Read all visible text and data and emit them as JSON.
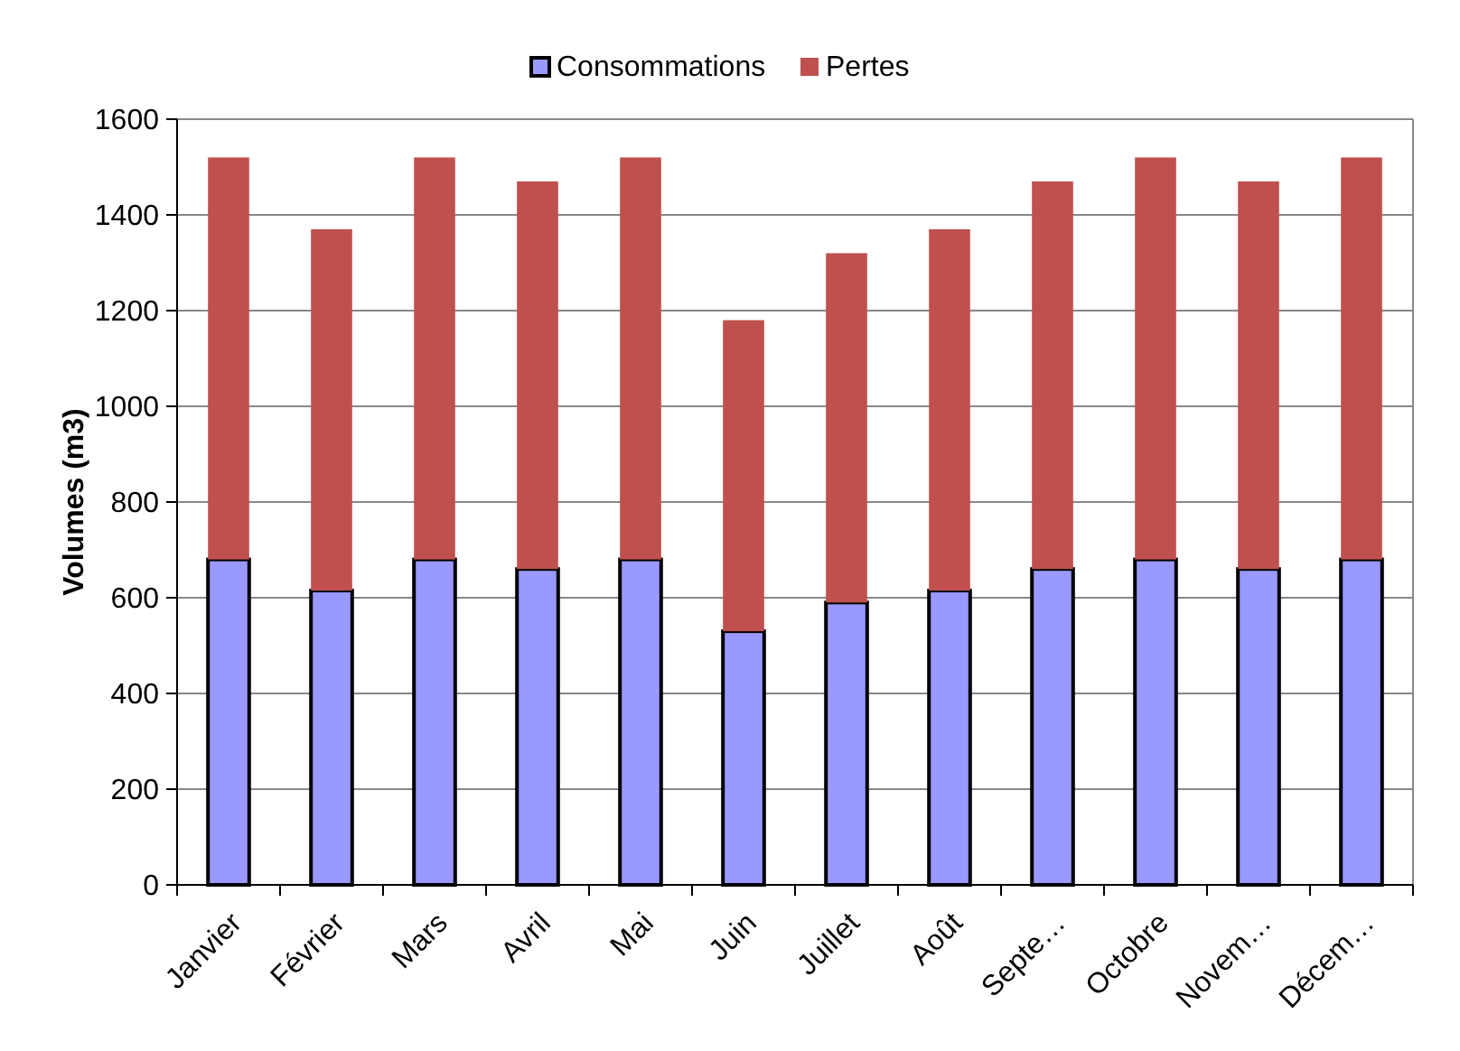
{
  "chart_data": {
    "type": "bar",
    "stacked": true,
    "ylabel": "Volumes (m3)",
    "categories": [
      "Janvier",
      "Février",
      "Mars",
      "Avril",
      "Mai",
      "Juin",
      "Juillet",
      "Août",
      "Septe…",
      "Octobre",
      "Novem…",
      "Décem…"
    ],
    "series": [
      {
        "name": "Consommations",
        "color": "#9999ff",
        "values": [
          680,
          615,
          680,
          660,
          680,
          530,
          590,
          615,
          660,
          680,
          660,
          680
        ]
      },
      {
        "name": "Pertes",
        "color": "#c0504d",
        "values": [
          840,
          755,
          840,
          810,
          840,
          650,
          730,
          755,
          810,
          840,
          810,
          840
        ]
      }
    ],
    "ylim": [
      0,
      1600
    ],
    "yticks": [
      0,
      200,
      400,
      600,
      800,
      1000,
      1200,
      1400,
      1600
    ],
    "grid": "y",
    "legend": "top"
  }
}
